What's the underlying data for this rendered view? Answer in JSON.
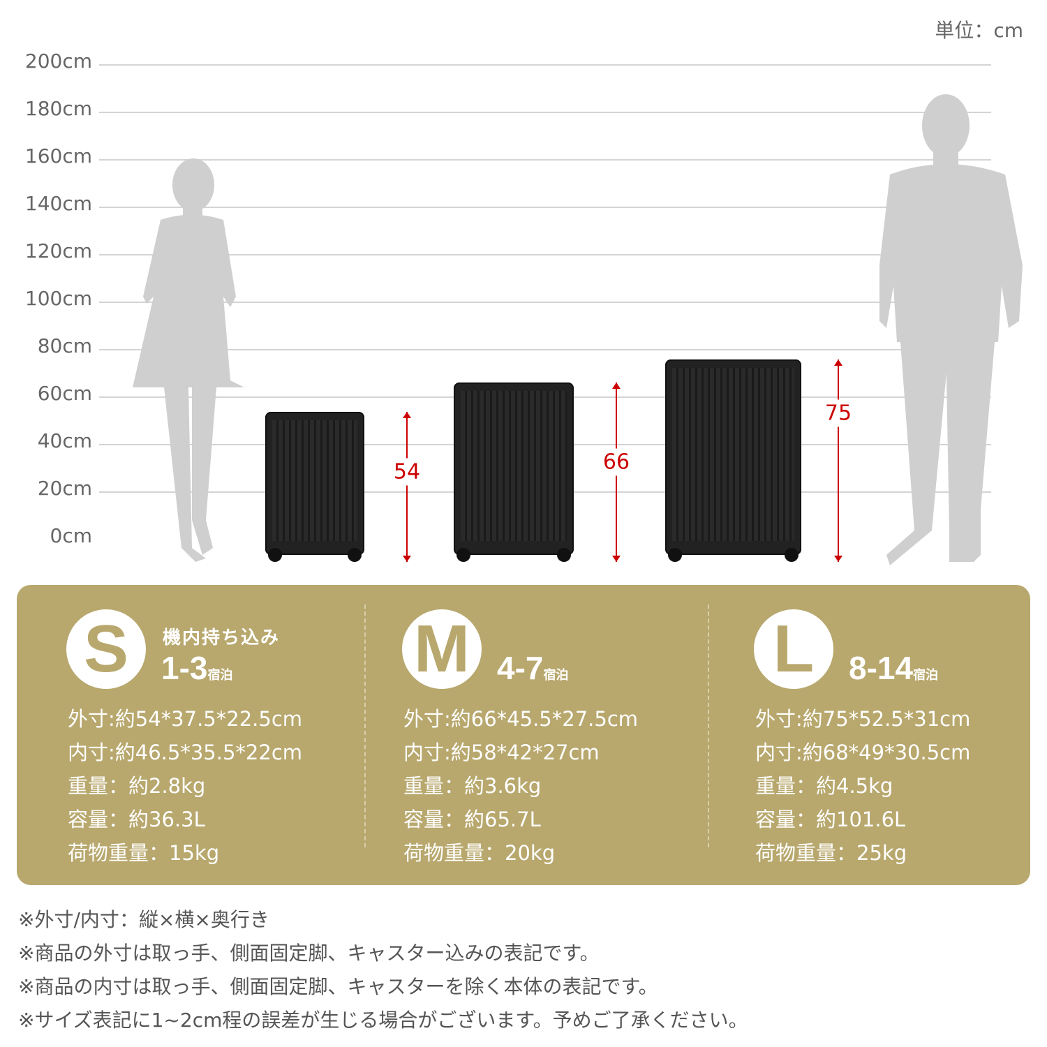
{
  "unit_label": "単位：cm",
  "y_axis": {
    "ticks": [
      "200cm",
      "180cm",
      "160cm",
      "140cm",
      "120cm",
      "100cm",
      "80cm",
      "60cm",
      "40cm",
      "20cm",
      "0cm"
    ]
  },
  "suitcases": [
    {
      "size": "S",
      "height_cm": "54",
      "carry_on": "機内持ち込み",
      "nights": "1-3",
      "nights_unit": "宿泊",
      "specs": [
        "外寸:約54*37.5*22.5cm",
        "内寸:約46.5*35.5*22cm",
        "重量：約2.8kg",
        "容量：約36.3L",
        "荷物重量：15kg"
      ]
    },
    {
      "size": "M",
      "height_cm": "66",
      "nights": "4-7",
      "nights_unit": "宿泊",
      "specs": [
        "外寸:約66*45.5*27.5cm",
        "内寸:約58*42*27cm",
        "重量：約3.6kg",
        "容量：約65.7L",
        "荷物重量：20kg"
      ]
    },
    {
      "size": "L",
      "height_cm": "75",
      "nights": "8-14",
      "nights_unit": "宿泊",
      "specs": [
        "外寸:約75*52.5*31cm",
        "内寸:約68*49*30.5cm",
        "重量：約4.5kg",
        "容量：約101.6L",
        "荷物重量：25kg"
      ]
    }
  ],
  "notes": [
    "※外寸/内寸：縦×横×奥行き",
    "※商品の外寸は取っ手、側面固定脚、キャスター込みの表記です。",
    "※商品の内寸は取っ手、側面固定脚、キャスターを除く本体の表記です。",
    "※サイズ表記に1~2cm程の誤差が生じる場合がございます。予めご了承ください。"
  ],
  "colors": {
    "panel": "#b8a86e",
    "dimension": "#cc0000",
    "silhouette": "#cccccc"
  }
}
